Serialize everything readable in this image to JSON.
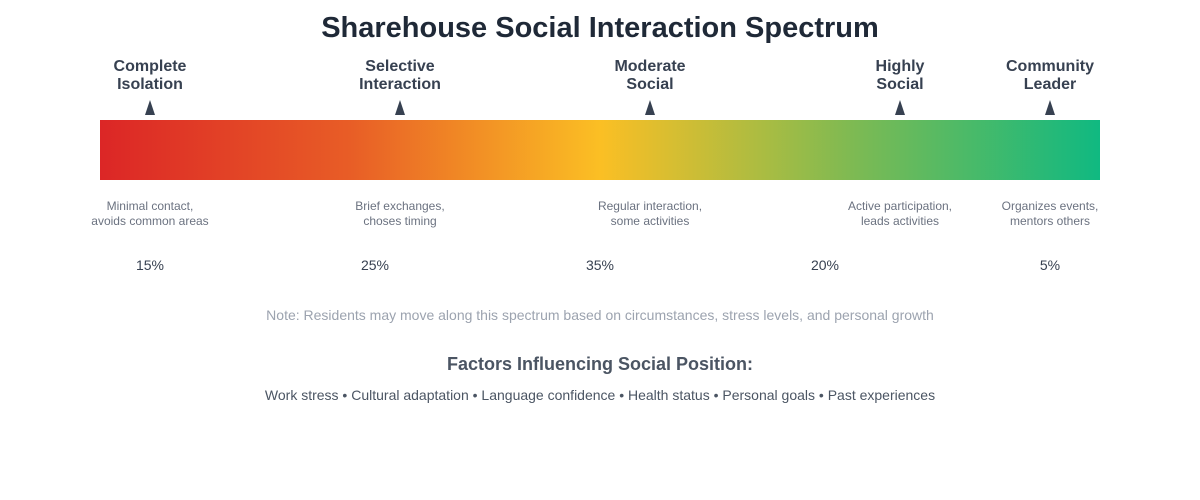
{
  "title": "Sharehouse Social Interaction Spectrum",
  "gradient_colors": [
    "#dc2626",
    "#e85d26",
    "#fbbf24",
    "#7fba52",
    "#10b981"
  ],
  "stages": [
    {
      "name": "Complete Isolation",
      "line1": "Complete",
      "line2": "Isolation",
      "desc1": "Minimal contact,",
      "desc2": "avoids common areas",
      "percent": "15%"
    },
    {
      "name": "Selective Interaction",
      "line1": "Selective",
      "line2": "Interaction",
      "desc1": "Brief exchanges,",
      "desc2": "choses timing",
      "percent": "25%"
    },
    {
      "name": "Moderate Social",
      "line1": "Moderate",
      "line2": "Social",
      "desc1": "Regular interaction,",
      "desc2": "some activities",
      "percent": "35%"
    },
    {
      "name": "Highly Social",
      "line1": "Highly",
      "line2": "Social",
      "desc1": "Active participation,",
      "desc2": "leads activities",
      "percent": "20%"
    },
    {
      "name": "Community Leader",
      "line1": "Community",
      "line2": "Leader",
      "desc1": "Organizes events,",
      "desc2": "mentors others",
      "percent": "5%"
    }
  ],
  "note": "Note: Residents may move along this spectrum based on circumstances, stress levels, and personal growth",
  "factors_title": "Factors Influencing Social Position:",
  "factors": "Work stress • Cultural adaptation • Language confidence • Health status • Personal goals • Past experiences"
}
